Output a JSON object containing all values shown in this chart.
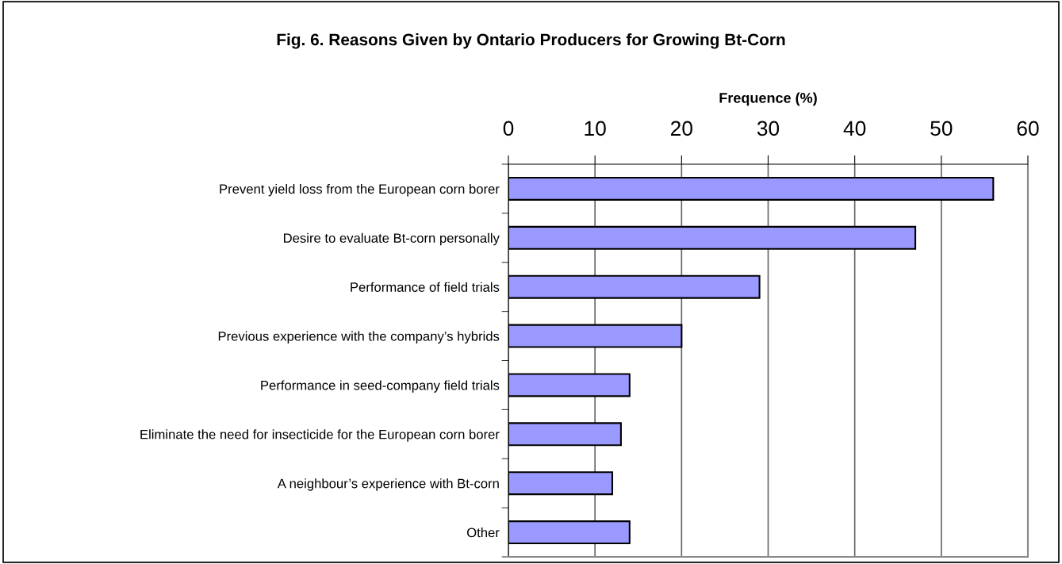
{
  "chart_data": {
    "type": "bar",
    "orientation": "horizontal",
    "title": "Fig. 6. Reasons Given by Ontario Producers for Growing Bt-Corn",
    "xlabel": "Frequence (%)",
    "categories": [
      "Prevent yield loss from the European corn borer",
      "Desire to evaluate Bt-corn personally",
      "Performance of field trials",
      "Previous experience with the company’s hybrids",
      "Performance in seed-company field trials",
      "Eliminate the need for insecticide for the European corn borer",
      "A neighbour’s experience with Bt-corn",
      "Other"
    ],
    "values": [
      56,
      47,
      29,
      20,
      14,
      13,
      12,
      14
    ],
    "color": "#9999ff",
    "xlim": [
      0,
      60
    ],
    "xticks": [
      0,
      10,
      20,
      30,
      40,
      50,
      60
    ],
    "grid": "x"
  }
}
